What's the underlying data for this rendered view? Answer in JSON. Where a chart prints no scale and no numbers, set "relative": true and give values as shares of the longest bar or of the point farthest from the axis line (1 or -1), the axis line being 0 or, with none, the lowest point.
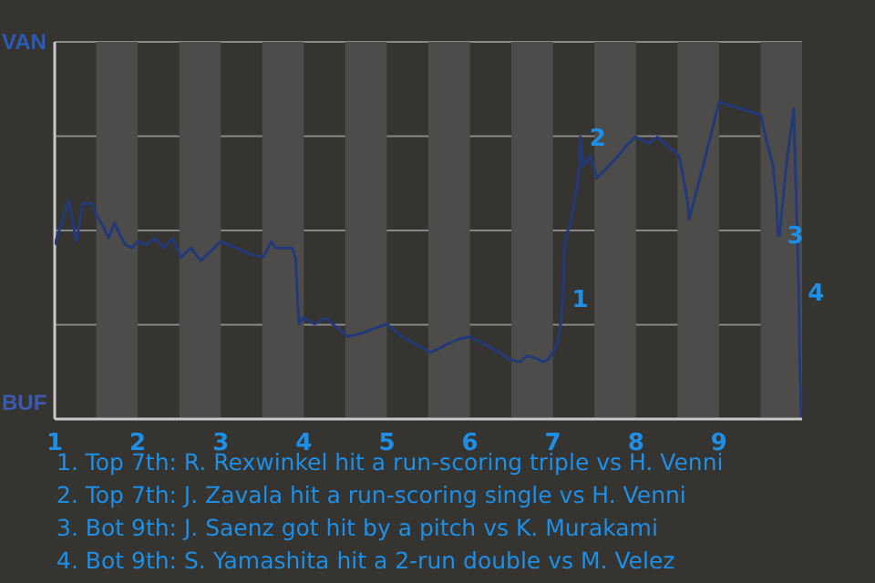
{
  "chart_data": {
    "type": "line",
    "relative": true,
    "x": [
      1.0,
      1.17,
      1.26,
      1.34,
      1.45,
      1.51,
      1.6,
      1.65,
      1.72,
      1.79,
      1.85,
      1.93,
      2.0,
      2.1,
      2.21,
      2.31,
      2.42,
      2.52,
      2.64,
      2.76,
      3.0,
      3.36,
      3.51,
      3.61,
      3.66,
      3.86,
      3.9,
      3.94,
      3.99,
      4.13,
      4.26,
      4.39,
      4.53,
      4.69,
      5.0,
      5.18,
      5.53,
      5.84,
      6.0,
      6.36,
      6.46,
      6.6,
      6.69,
      6.81,
      6.88,
      6.95,
      7.04,
      7.08,
      7.12,
      7.14,
      7.22,
      7.29,
      7.32,
      7.33,
      7.37,
      7.45,
      7.53,
      7.75,
      7.91,
      8.0,
      8.16,
      8.26,
      8.52,
      8.62,
      8.64,
      8.81,
      9.0,
      9.5,
      9.58,
      9.65,
      9.69,
      9.71,
      9.73,
      9.81,
      9.9,
      9.92,
      9.94,
      9.96,
      9.97,
      9.99
    ],
    "series": [
      {
        "color": "#22397a",
        "values": [
          0.55,
          0.69,
          0.56,
          0.68,
          0.68,
          0.64,
          0.6,
          0.57,
          0.62,
          0.58,
          0.55,
          0.54,
          0.56,
          0.55,
          0.57,
          0.54,
          0.57,
          0.51,
          0.54,
          0.5,
          0.56,
          0.52,
          0.51,
          0.56,
          0.54,
          0.54,
          0.51,
          0.3,
          0.32,
          0.3,
          0.32,
          0.29,
          0.26,
          0.27,
          0.3,
          0.26,
          0.21,
          0.25,
          0.26,
          0.21,
          0.19,
          0.18,
          0.2,
          0.19,
          0.18,
          0.19,
          0.23,
          0.27,
          0.38,
          0.56,
          0.63,
          0.73,
          0.8,
          0.89,
          0.8,
          0.83,
          0.76,
          0.82,
          0.87,
          0.89,
          0.87,
          0.89,
          0.83,
          0.69,
          0.63,
          0.8,
          1,
          0.96,
          0.87,
          0.8,
          0.69,
          0.58,
          0.58,
          0.8,
          0.98,
          0.79,
          0.6,
          0.4,
          0.2,
          0
        ]
      }
    ],
    "xlim": [
      1,
      10
    ],
    "xticks": [
      1,
      2,
      3,
      4,
      5,
      6,
      7,
      8,
      9
    ],
    "grid": "y",
    "marker": "none",
    "line_style": "solid",
    "legend": false,
    "bands": [
      {
        "axis": "x",
        "from": 1.5,
        "to": 2,
        "color": "#4e4c4a"
      },
      {
        "axis": "x",
        "from": 2.5,
        "to": 3,
        "color": "#4e4c4a"
      },
      {
        "axis": "x",
        "from": 3.5,
        "to": 4,
        "color": "#4e4c4a"
      },
      {
        "axis": "x",
        "from": 4.5,
        "to": 5,
        "color": "#4e4c4a"
      },
      {
        "axis": "x",
        "from": 5.5,
        "to": 6,
        "color": "#4e4c4a"
      },
      {
        "axis": "x",
        "from": 6.5,
        "to": 7,
        "color": "#4e4c4a"
      },
      {
        "axis": "x",
        "from": 7.5,
        "to": 8,
        "color": "#4e4c4a"
      },
      {
        "axis": "x",
        "from": 8.5,
        "to": 9,
        "color": "#4e4c4a"
      },
      {
        "axis": "x",
        "from": 9.5,
        "to": 10,
        "color": "#4e4c4a"
      }
    ],
    "annotations": [
      "VAN",
      "BUF",
      {
        "text": "1",
        "x": 7.12,
        "y": 0.38
      },
      {
        "text": "2",
        "x": 7.33,
        "y": 0.89
      },
      {
        "text": "3",
        "x": 9.71,
        "y": 0.58
      },
      {
        "text": "4",
        "x": 9.96,
        "y": 0.4
      },
      "1. Top 7th: R. Rexwinkel hit a run-scoring triple vs H. Venni",
      "2. Top 7th: J. Zavala hit a run-scoring single vs H. Venni",
      "3. Bot 9th: J. Saenz got hit by a pitch vs K. Murakami",
      "4. Bot 9th: S. Yamashita hit a 2-run double vs M. Velez"
    ]
  }
}
